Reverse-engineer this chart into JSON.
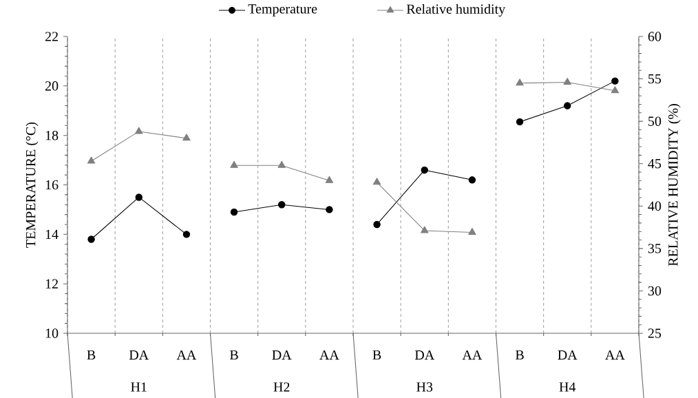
{
  "chart_data": {
    "type": "line",
    "ylabel": "TEMPERATURE (°C)",
    "y2label": "RELATIVE HUMIDITY  (%)",
    "categories": [
      "B",
      "DA",
      "AA",
      "B",
      "DA",
      "AA",
      "B",
      "DA",
      "AA",
      "B",
      "DA",
      "AA"
    ],
    "annotations": [
      "H1",
      "H2",
      "H3",
      "H4"
    ],
    "series": [
      {
        "name": "Temperature",
        "color": "#000000",
        "marker": "circle",
        "values": [
          13.8,
          15.5,
          14.0,
          null,
          null,
          null,
          null,
          null,
          null,
          null,
          null,
          null
        ]
      },
      {
        "color": "#000000",
        "marker": "circle",
        "values": [
          null,
          null,
          null,
          14.9,
          15.2,
          15.0,
          null,
          null,
          null,
          null,
          null,
          null
        ]
      },
      {
        "color": "#000000",
        "marker": "circle",
        "values": [
          null,
          null,
          null,
          null,
          null,
          null,
          14.4,
          16.6,
          16.2,
          null,
          null,
          null
        ]
      },
      {
        "color": "#000000",
        "marker": "circle",
        "values": [
          null,
          null,
          null,
          null,
          null,
          null,
          null,
          null,
          null,
          18.55,
          19.2,
          20.2
        ]
      },
      {
        "name": "Relative humidity",
        "color": "#808080",
        "marker": "triangle",
        "axis": "y2",
        "values": [
          45.3,
          48.8,
          48.0,
          null,
          null,
          null,
          null,
          null,
          null,
          null,
          null,
          null
        ]
      },
      {
        "color": "#808080",
        "marker": "triangle",
        "axis": "y2",
        "values": [
          null,
          null,
          null,
          44.8,
          44.8,
          43.0,
          null,
          null,
          null,
          null,
          null,
          null
        ]
      },
      {
        "color": "#808080",
        "marker": "triangle",
        "axis": "y2",
        "values": [
          null,
          null,
          null,
          null,
          null,
          null,
          42.8,
          37.1,
          36.9,
          null,
          null,
          null
        ]
      },
      {
        "color": "#808080",
        "marker": "triangle",
        "axis": "y2",
        "values": [
          null,
          null,
          null,
          null,
          null,
          null,
          null,
          null,
          null,
          54.5,
          54.6,
          53.6
        ]
      }
    ],
    "ylim": [
      10,
      22
    ],
    "yticks": [
      10,
      12,
      14,
      16,
      18,
      20,
      22
    ],
    "y2lim": [
      25,
      60
    ],
    "y2ticks": [
      25,
      30,
      35,
      40,
      45,
      50,
      55,
      60
    ],
    "grid": "x",
    "legend": "top"
  }
}
